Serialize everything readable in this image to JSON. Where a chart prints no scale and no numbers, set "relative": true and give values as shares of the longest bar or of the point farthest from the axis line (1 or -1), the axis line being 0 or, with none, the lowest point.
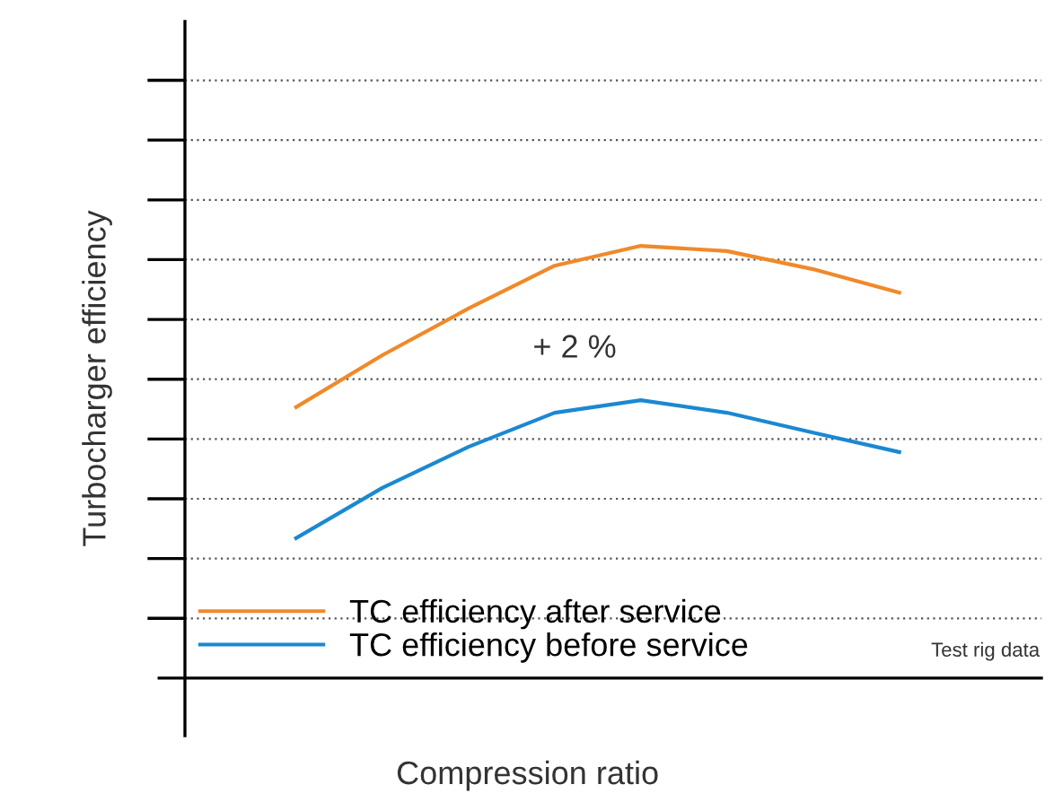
{
  "chart_data": {
    "type": "line",
    "relative": true,
    "xlabel": "Compression ratio",
    "ylabel": "Turbocharger efficiency",
    "categories": [
      null,
      null,
      null,
      null,
      null,
      null,
      null,
      null
    ],
    "series": [
      {
        "name": "TC efficiency after service",
        "color": "#f0892a",
        "values": [
          0.627,
          0.747,
          0.855,
          0.954,
          1.0,
          0.988,
          0.946,
          0.892
        ]
      },
      {
        "name": "TC efficiency before service",
        "color": "#1b88d1",
        "values": [
          0.324,
          0.44,
          0.535,
          0.614,
          0.643,
          0.614,
          0.568,
          0.523
        ]
      }
    ],
    "grid": "y",
    "legend": "bottom left",
    "line_style": "solid",
    "marker": "none",
    "annotations": [
      "+ 2 %",
      "Test rig data"
    ]
  }
}
